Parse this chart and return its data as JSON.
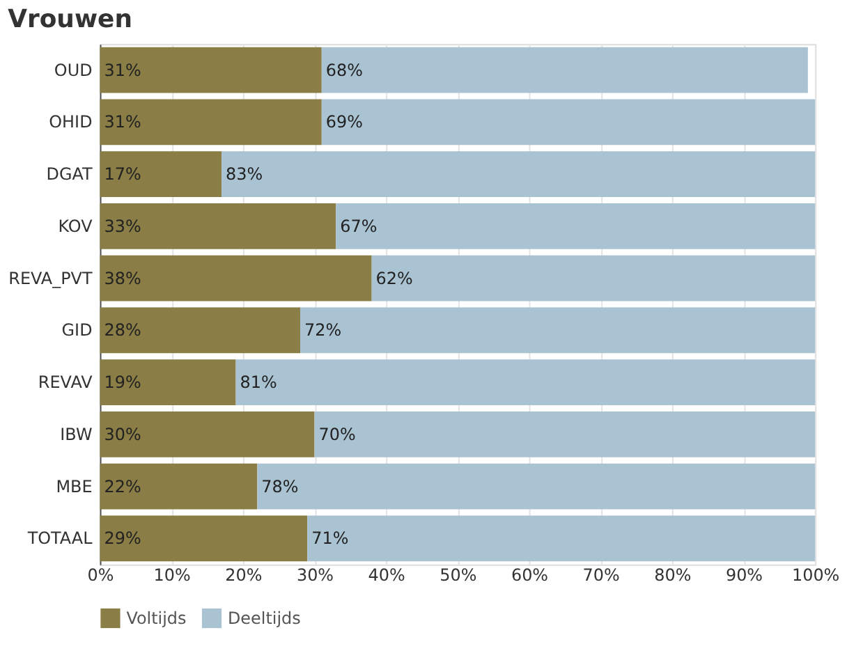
{
  "chart_data": {
    "type": "bar",
    "orientation": "horizontal",
    "stacked": true,
    "title": "Vrouwen",
    "categories": [
      "OUD",
      "OHID",
      "DGAT",
      "KOV",
      "REVA_PVT",
      "GID",
      "REVAV",
      "IBW",
      "MBE",
      "TOTAAL"
    ],
    "series": [
      {
        "name": "Voltijds",
        "color": "#8a7d45",
        "values": [
          31,
          31,
          17,
          33,
          38,
          28,
          19,
          30,
          22,
          29
        ],
        "value_labels": [
          "31%",
          "31%",
          "17%",
          "33%",
          "38%",
          "28%",
          "19%",
          "30%",
          "22%",
          "29%"
        ]
      },
      {
        "name": "Deeltijds",
        "color": "#aac3d3",
        "values": [
          68,
          69,
          83,
          67,
          62,
          72,
          81,
          70,
          78,
          71
        ],
        "value_labels": [
          "68%",
          "69%",
          "83%",
          "67%",
          "62%",
          "72%",
          "81%",
          "70%",
          "78%",
          "71%"
        ]
      }
    ],
    "xlim": [
      0,
      100
    ],
    "xticks": [
      {
        "value": 0,
        "label": "0%"
      },
      {
        "value": 10,
        "label": "10%"
      },
      {
        "value": 20,
        "label": "20%"
      },
      {
        "value": 30,
        "label": "30%"
      },
      {
        "value": 40,
        "label": "40%"
      },
      {
        "value": 50,
        "label": "50%"
      },
      {
        "value": 60,
        "label": "60%"
      },
      {
        "value": 70,
        "label": "70%"
      },
      {
        "value": 80,
        "label": "80%"
      },
      {
        "value": 90,
        "label": "90%"
      },
      {
        "value": 100,
        "label": "100%"
      }
    ],
    "grid": "x",
    "legend": "bottom"
  }
}
